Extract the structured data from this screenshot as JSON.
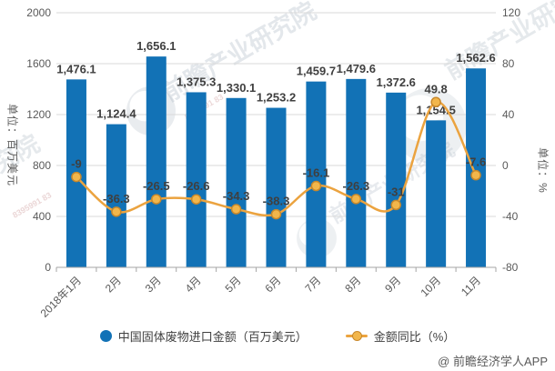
{
  "chart_data": {
    "type": "combo-bar-line",
    "categories": [
      "2018年1月",
      "2月",
      "3月",
      "4月",
      "5月",
      "6月",
      "7月",
      "8月",
      "9月",
      "10月",
      "11月"
    ],
    "series": [
      {
        "name": "中国固体废物进口金额（百万美元）",
        "type": "bar",
        "axis": "left",
        "values": [
          1476.1,
          1124.4,
          1656.1,
          1375.3,
          1330.1,
          1253.2,
          1459.7,
          1479.6,
          1372.6,
          1154.5,
          1562.6
        ],
        "labels": [
          "1,476.1",
          "1,124.4",
          "1,656.1",
          "1,375.3",
          "1,330.1",
          "1,253.2",
          "1,459.7",
          "1,479.6",
          "1,372.6",
          "1,154.5",
          "1,562.6"
        ]
      },
      {
        "name": "金额同比（%）",
        "type": "line",
        "axis": "right",
        "values": [
          -9,
          -36.3,
          -26.5,
          -26.6,
          -34.3,
          -38.3,
          -16.1,
          -26.3,
          -31,
          49.8,
          -7.6
        ],
        "labels": [
          "-9",
          "-36.3",
          "-26.5",
          "-26.6",
          "-34.3",
          "-38.3",
          "-16.1",
          "-26.3",
          "-31",
          "49.8",
          "-7.6"
        ]
      }
    ],
    "left_axis": {
      "title": "单位：百万美元",
      "min": 0,
      "max": 2000,
      "step": 400,
      "tick_labels": [
        "2000",
        "1600",
        "1200",
        "800",
        "400",
        "0"
      ]
    },
    "right_axis": {
      "title": "单位：%",
      "min": -80,
      "max": 120,
      "step": 40,
      "tick_labels": [
        "120",
        "80",
        "40",
        "0",
        "-40",
        "-80"
      ]
    },
    "grid": true,
    "legend_position": "bottom"
  },
  "colors": {
    "bar": "#1272B6",
    "line": "#EBA33F",
    "marker_fill": "#F2B64B",
    "marker_stroke": "#C8882B",
    "grid": "#D9D9D9",
    "axis_line": "#A6A6A6",
    "tick_text": "#595959",
    "value_label_text": "#3F3F3F",
    "watermark": "#97A5B4",
    "watermark_digits": "#C08080"
  },
  "watermarks": {
    "diagonal_text": "前瞻产业研究院",
    "digits": "8395991 83",
    "credit": "@ 前瞻经济学人APP"
  }
}
